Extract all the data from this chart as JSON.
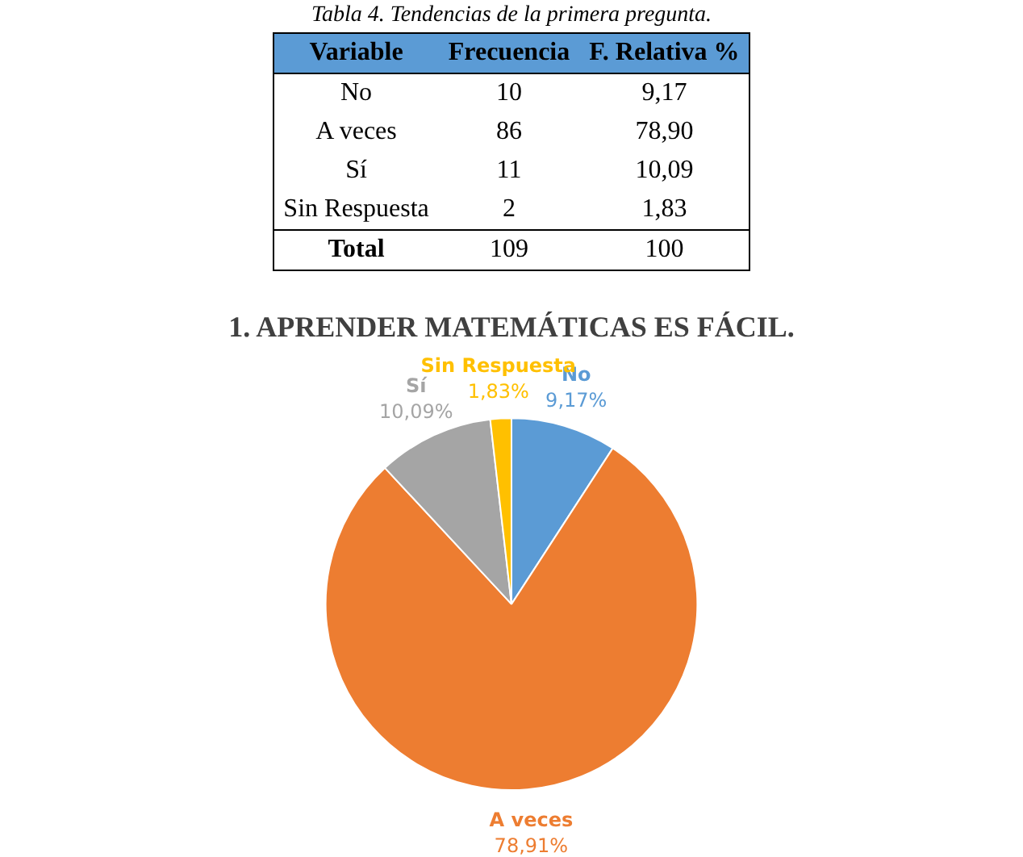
{
  "chart_data": [
    {
      "type": "other",
      "title": "Tabla 4.  Tendencias de la primera pregunta.",
      "categories": [
        "Variable",
        "Frecuencia",
        "F. Relativa %"
      ],
      "y_categories": [
        "No",
        "A veces",
        "Sí",
        "Sin Respuesta",
        "Total"
      ],
      "cell_labels": [
        [
          "10",
          "9,17"
        ],
        [
          "86",
          "78,90"
        ],
        [
          "11",
          "10,09"
        ],
        [
          "2",
          "1,83"
        ],
        [
          "109",
          "100"
        ]
      ]
    },
    {
      "type": "pie",
      "title": "1. APRENDER MATEMÁTICAS ES FÁCIL.",
      "categories": [
        "No",
        "A veces",
        "Sí",
        "Sin Respuesta"
      ],
      "values": [
        9.17,
        78.91,
        10.09,
        1.83
      ],
      "colors": [
        "#5b9bd5",
        "#ed7d31",
        "#a5a5a5",
        "#ffc000"
      ],
      "value_labels": [
        "9,17%",
        "78,91%",
        "10,09%",
        "1,83%"
      ],
      "legend": false
    }
  ]
}
